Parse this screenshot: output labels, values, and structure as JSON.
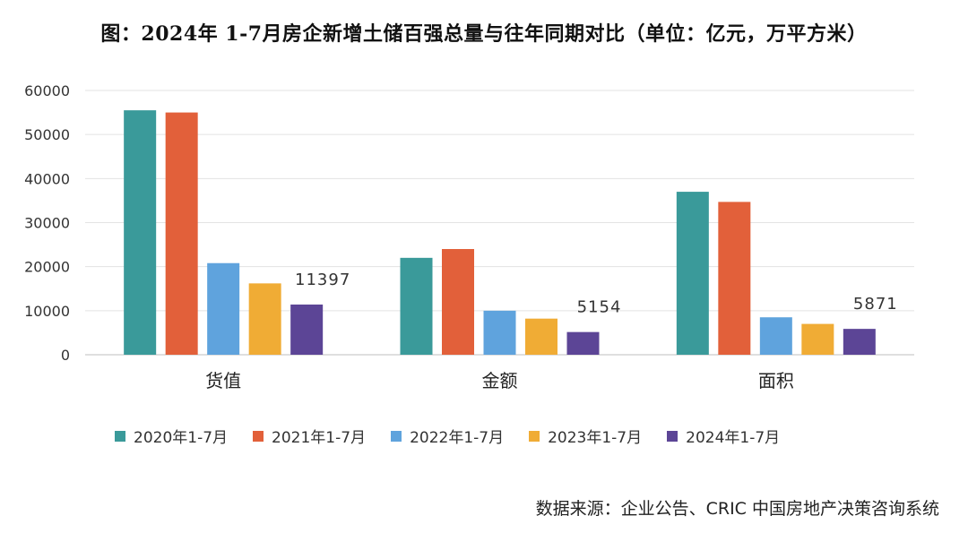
{
  "chart_data": {
    "type": "bar",
    "title": "图：2024年 1-7月房企新增土储百强总量与往年同期对比（单位：亿元，万平方米）",
    "categories": [
      "货值",
      "金额",
      "面积"
    ],
    "series": [
      {
        "name": "2020年1-7月",
        "color": "#3A9A9A",
        "values": [
          55500,
          22000,
          37000
        ]
      },
      {
        "name": "2021年1-7月",
        "color": "#E2603A",
        "values": [
          55000,
          24000,
          34700
        ]
      },
      {
        "name": "2022年1-7月",
        "color": "#5FA3DD",
        "values": [
          20800,
          10000,
          8500
        ]
      },
      {
        "name": "2023年1-7月",
        "color": "#F0AC35",
        "values": [
          16200,
          8200,
          7000
        ]
      },
      {
        "name": "2024年1-7月",
        "color": "#5C4596",
        "values": [
          11397,
          5154,
          5871
        ]
      }
    ],
    "data_labels": [
      {
        "series": 4,
        "category": 0,
        "text": "11397"
      },
      {
        "series": 4,
        "category": 1,
        "text": "5154"
      },
      {
        "series": 4,
        "category": 2,
        "text": "5871"
      }
    ],
    "ylim": [
      0,
      60000
    ],
    "yticks": [
      0,
      10000,
      20000,
      30000,
      40000,
      50000,
      60000
    ],
    "xlabel": "",
    "ylabel": "",
    "grid": true,
    "legend_position": "bottom"
  },
  "source": "数据来源：企业公告、CRIC 中国房地产决策咨询系统"
}
